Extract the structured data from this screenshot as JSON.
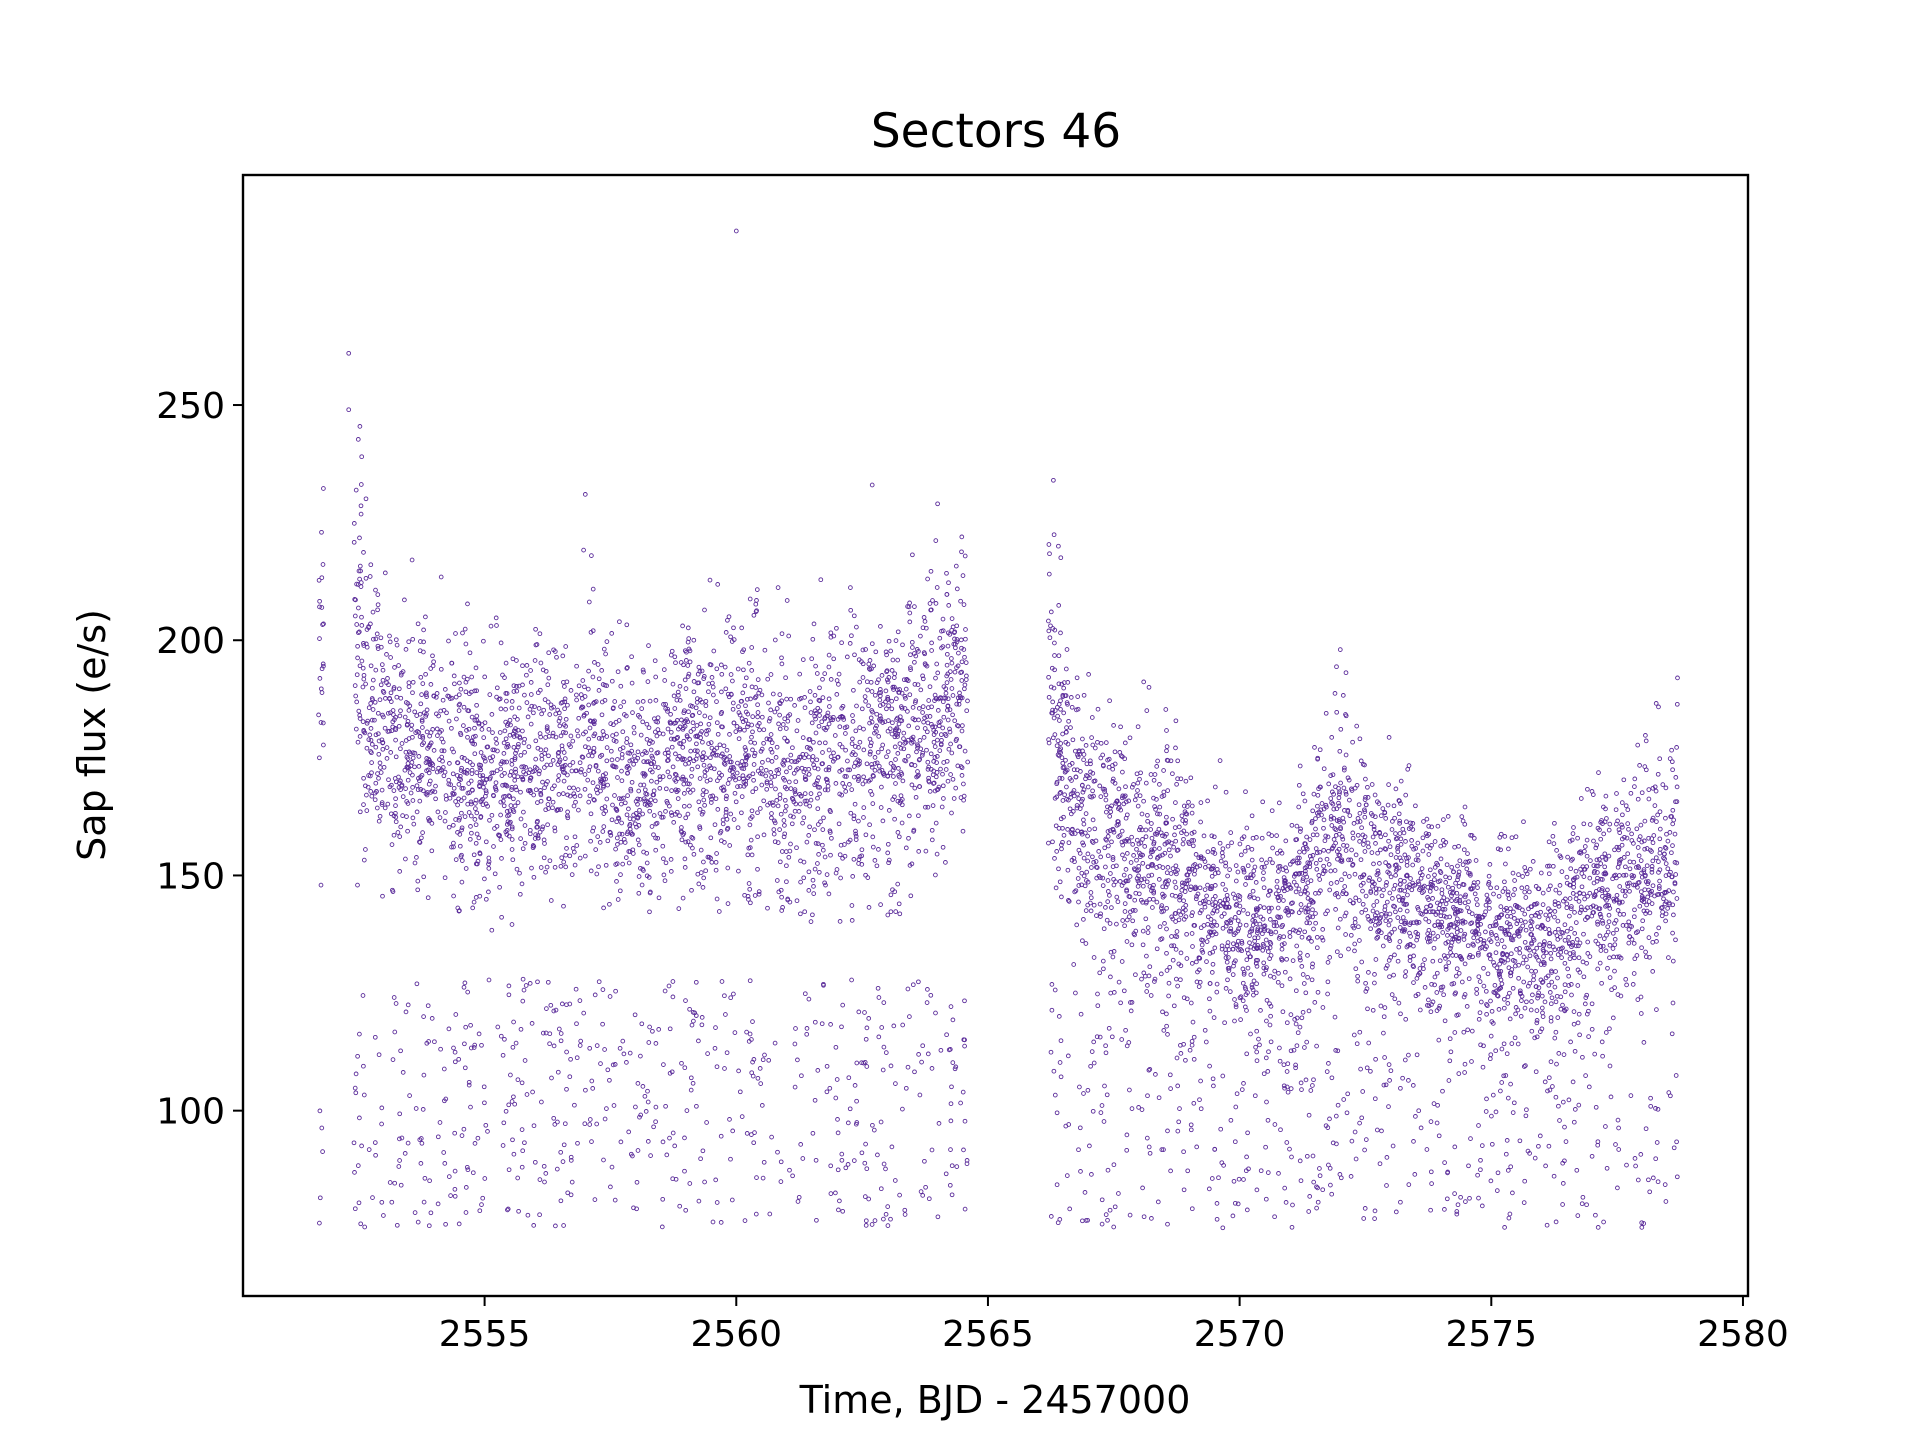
{
  "chart_data": {
    "type": "scatter",
    "title": "Sectors 46",
    "xlabel": "Time, BJD - 2457000",
    "ylabel": "Sap flux (e/s)",
    "xlim": [
      2550.2,
      2580.1
    ],
    "ylim": [
      60.6,
      298.9
    ],
    "xticks": [
      2555,
      2560,
      2565,
      2570,
      2575,
      2580
    ],
    "yticks": [
      100,
      150,
      200,
      250
    ],
    "grid": false,
    "legend": "none",
    "marker": "small hollow circle",
    "point_color": "#5b2c9a",
    "series": [
      {
        "description": "light curve",
        "segments": [
          {
            "x_range": [
              2551.7,
              2551.8
            ],
            "band_profile": [
              [
                2551.7,
                200,
                145,
                245
              ]
            ],
            "outliers": []
          },
          {
            "x_range": [
              2552.4,
              2564.6
            ],
            "band_profile": [
              [
                2552.4,
                205,
                140,
                262
              ],
              [
                2553.0,
                178,
                145,
                222
              ],
              [
                2554.0,
                176,
                140,
                220
              ],
              [
                2555.0,
                172,
                138,
                208
              ],
              [
                2556.0,
                170,
                138,
                210
              ],
              [
                2557.0,
                175,
                140,
                220
              ],
              [
                2558.0,
                168,
                140,
                210
              ],
              [
                2559.0,
                177,
                142,
                212
              ],
              [
                2560.0,
                176,
                142,
                222
              ],
              [
                2561.0,
                172,
                140,
                212
              ],
              [
                2562.0,
                176,
                140,
                220
              ],
              [
                2563.0,
                176,
                140,
                226
              ],
              [
                2564.0,
                182,
                145,
                226
              ],
              [
                2564.6,
                192,
                150,
                228
              ]
            ],
            "outliers": [
              [
                2552.3,
                261
              ],
              [
                2552.3,
                249
              ],
              [
                2560.0,
                287
              ],
              [
                2557.0,
                231
              ],
              [
                2562.7,
                233
              ],
              [
                2564.0,
                229
              ]
            ]
          },
          {
            "x_range": [
              2566.2,
              2578.7
            ],
            "band_profile": [
              [
                2566.2,
                188,
                140,
                234
              ],
              [
                2566.6,
                170,
                130,
                215
              ],
              [
                2567.0,
                160,
                125,
                200
              ],
              [
                2568.0,
                155,
                122,
                192
              ],
              [
                2569.0,
                148,
                118,
                185
              ],
              [
                2570.0,
                138,
                115,
                168
              ],
              [
                2571.0,
                142,
                118,
                175
              ],
              [
                2572.0,
                160,
                122,
                198
              ],
              [
                2573.0,
                147,
                118,
                180
              ],
              [
                2574.0,
                143,
                116,
                172
              ],
              [
                2575.0,
                137,
                112,
                165
              ],
              [
                2576.0,
                136,
                112,
                168
              ],
              [
                2577.0,
                143,
                115,
                178
              ],
              [
                2578.0,
                150,
                120,
                190
              ],
              [
                2578.7,
                156,
                125,
                192
              ]
            ],
            "outliers": [
              [
                2566.3,
                234
              ],
              [
                2566.4,
                220
              ],
              [
                2572.0,
                198
              ],
              [
                2568.2,
                190
              ],
              [
                2578.7,
                192
              ]
            ]
          }
        ],
        "low_flux_cloud": {
          "y_range": [
            75,
            128
          ],
          "notes": "sparse points spread through both observation segments"
        }
      }
    ]
  }
}
